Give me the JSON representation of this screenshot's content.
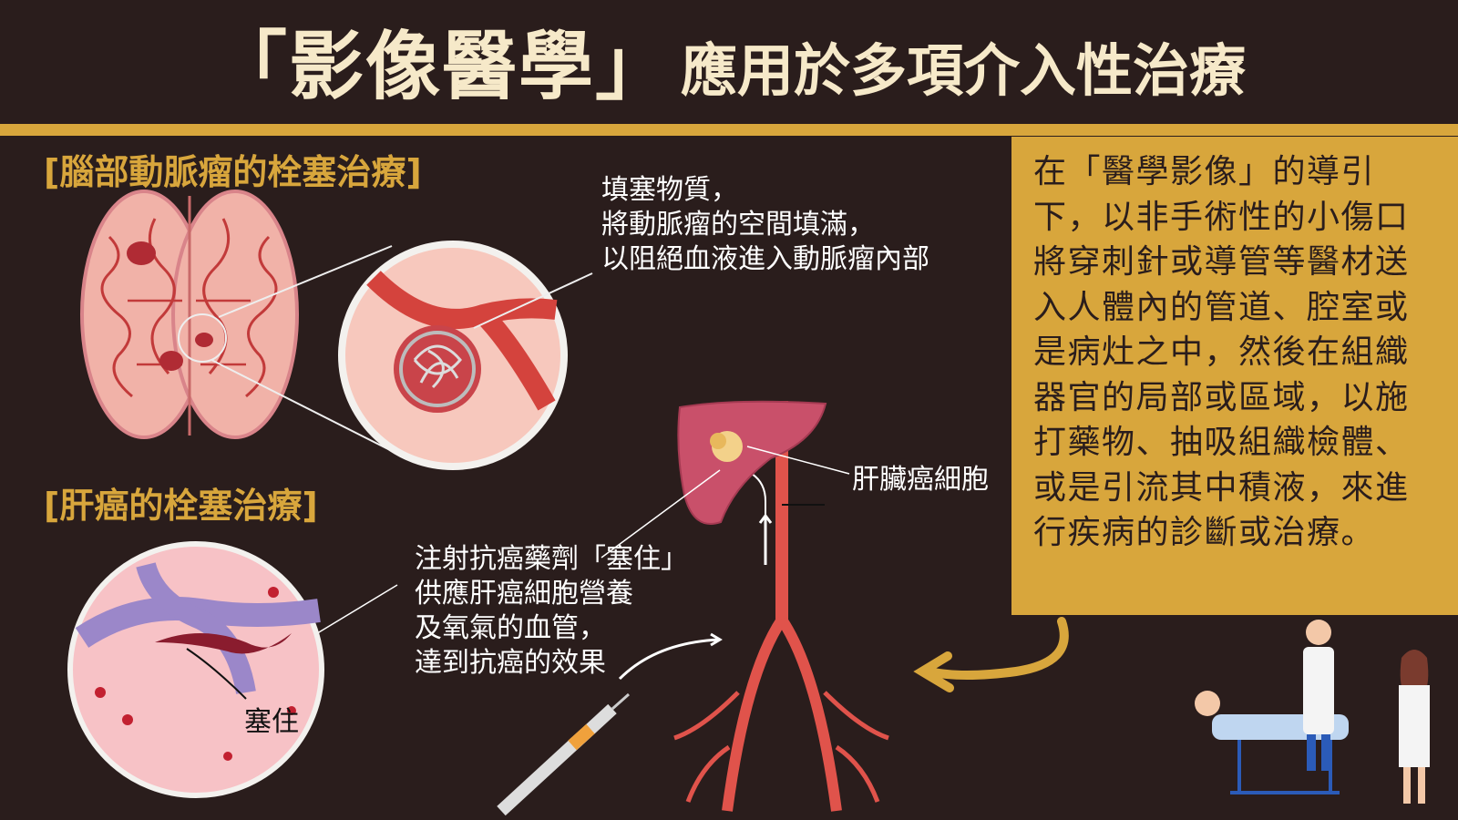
{
  "title": {
    "main": "「影像醫學」",
    "rest": "應用於多項介入性治療"
  },
  "sections": {
    "brain": {
      "label": "[腦部動脈瘤的栓塞治療]"
    },
    "liver": {
      "label": "[肝癌的栓塞治療]"
    }
  },
  "brain_note": {
    "lines": [
      "填塞物質，",
      "將動脈瘤的空間填滿，",
      "以阻絕血液進入動脈瘤內部"
    ]
  },
  "liver_note": {
    "lines": [
      "注射抗癌藥劑「塞住」",
      "供應肝癌細胞營養",
      "及氧氣的血管，",
      "達到抗癌的效果"
    ]
  },
  "labels": {
    "liver_cancer_cell": "肝臟癌細胞",
    "blocked": "塞住"
  },
  "description": "在「醫學影像」的導引下，以非手術性的小傷口將穿刺針或導管等醫材送入人體內的管道、腔室或是病灶之中，然後在組織器官的局部或區域，以施打藥物、抽吸組織檢體、或是引流其中積液，來進行疾病的診斷或治療。",
  "colors": {
    "background": "#2a1d1c",
    "accent_gold": "#d8a63c",
    "title_cream": "#f6e9c9",
    "artery_red": "#e0534b"
  },
  "icons": [
    "brain-icon",
    "aneurysm-coil-icon",
    "liver-icon",
    "artery-icon",
    "syringe-icon",
    "blood-vessel-icon",
    "doctors-patient-icon",
    "curved-arrow-icon"
  ]
}
